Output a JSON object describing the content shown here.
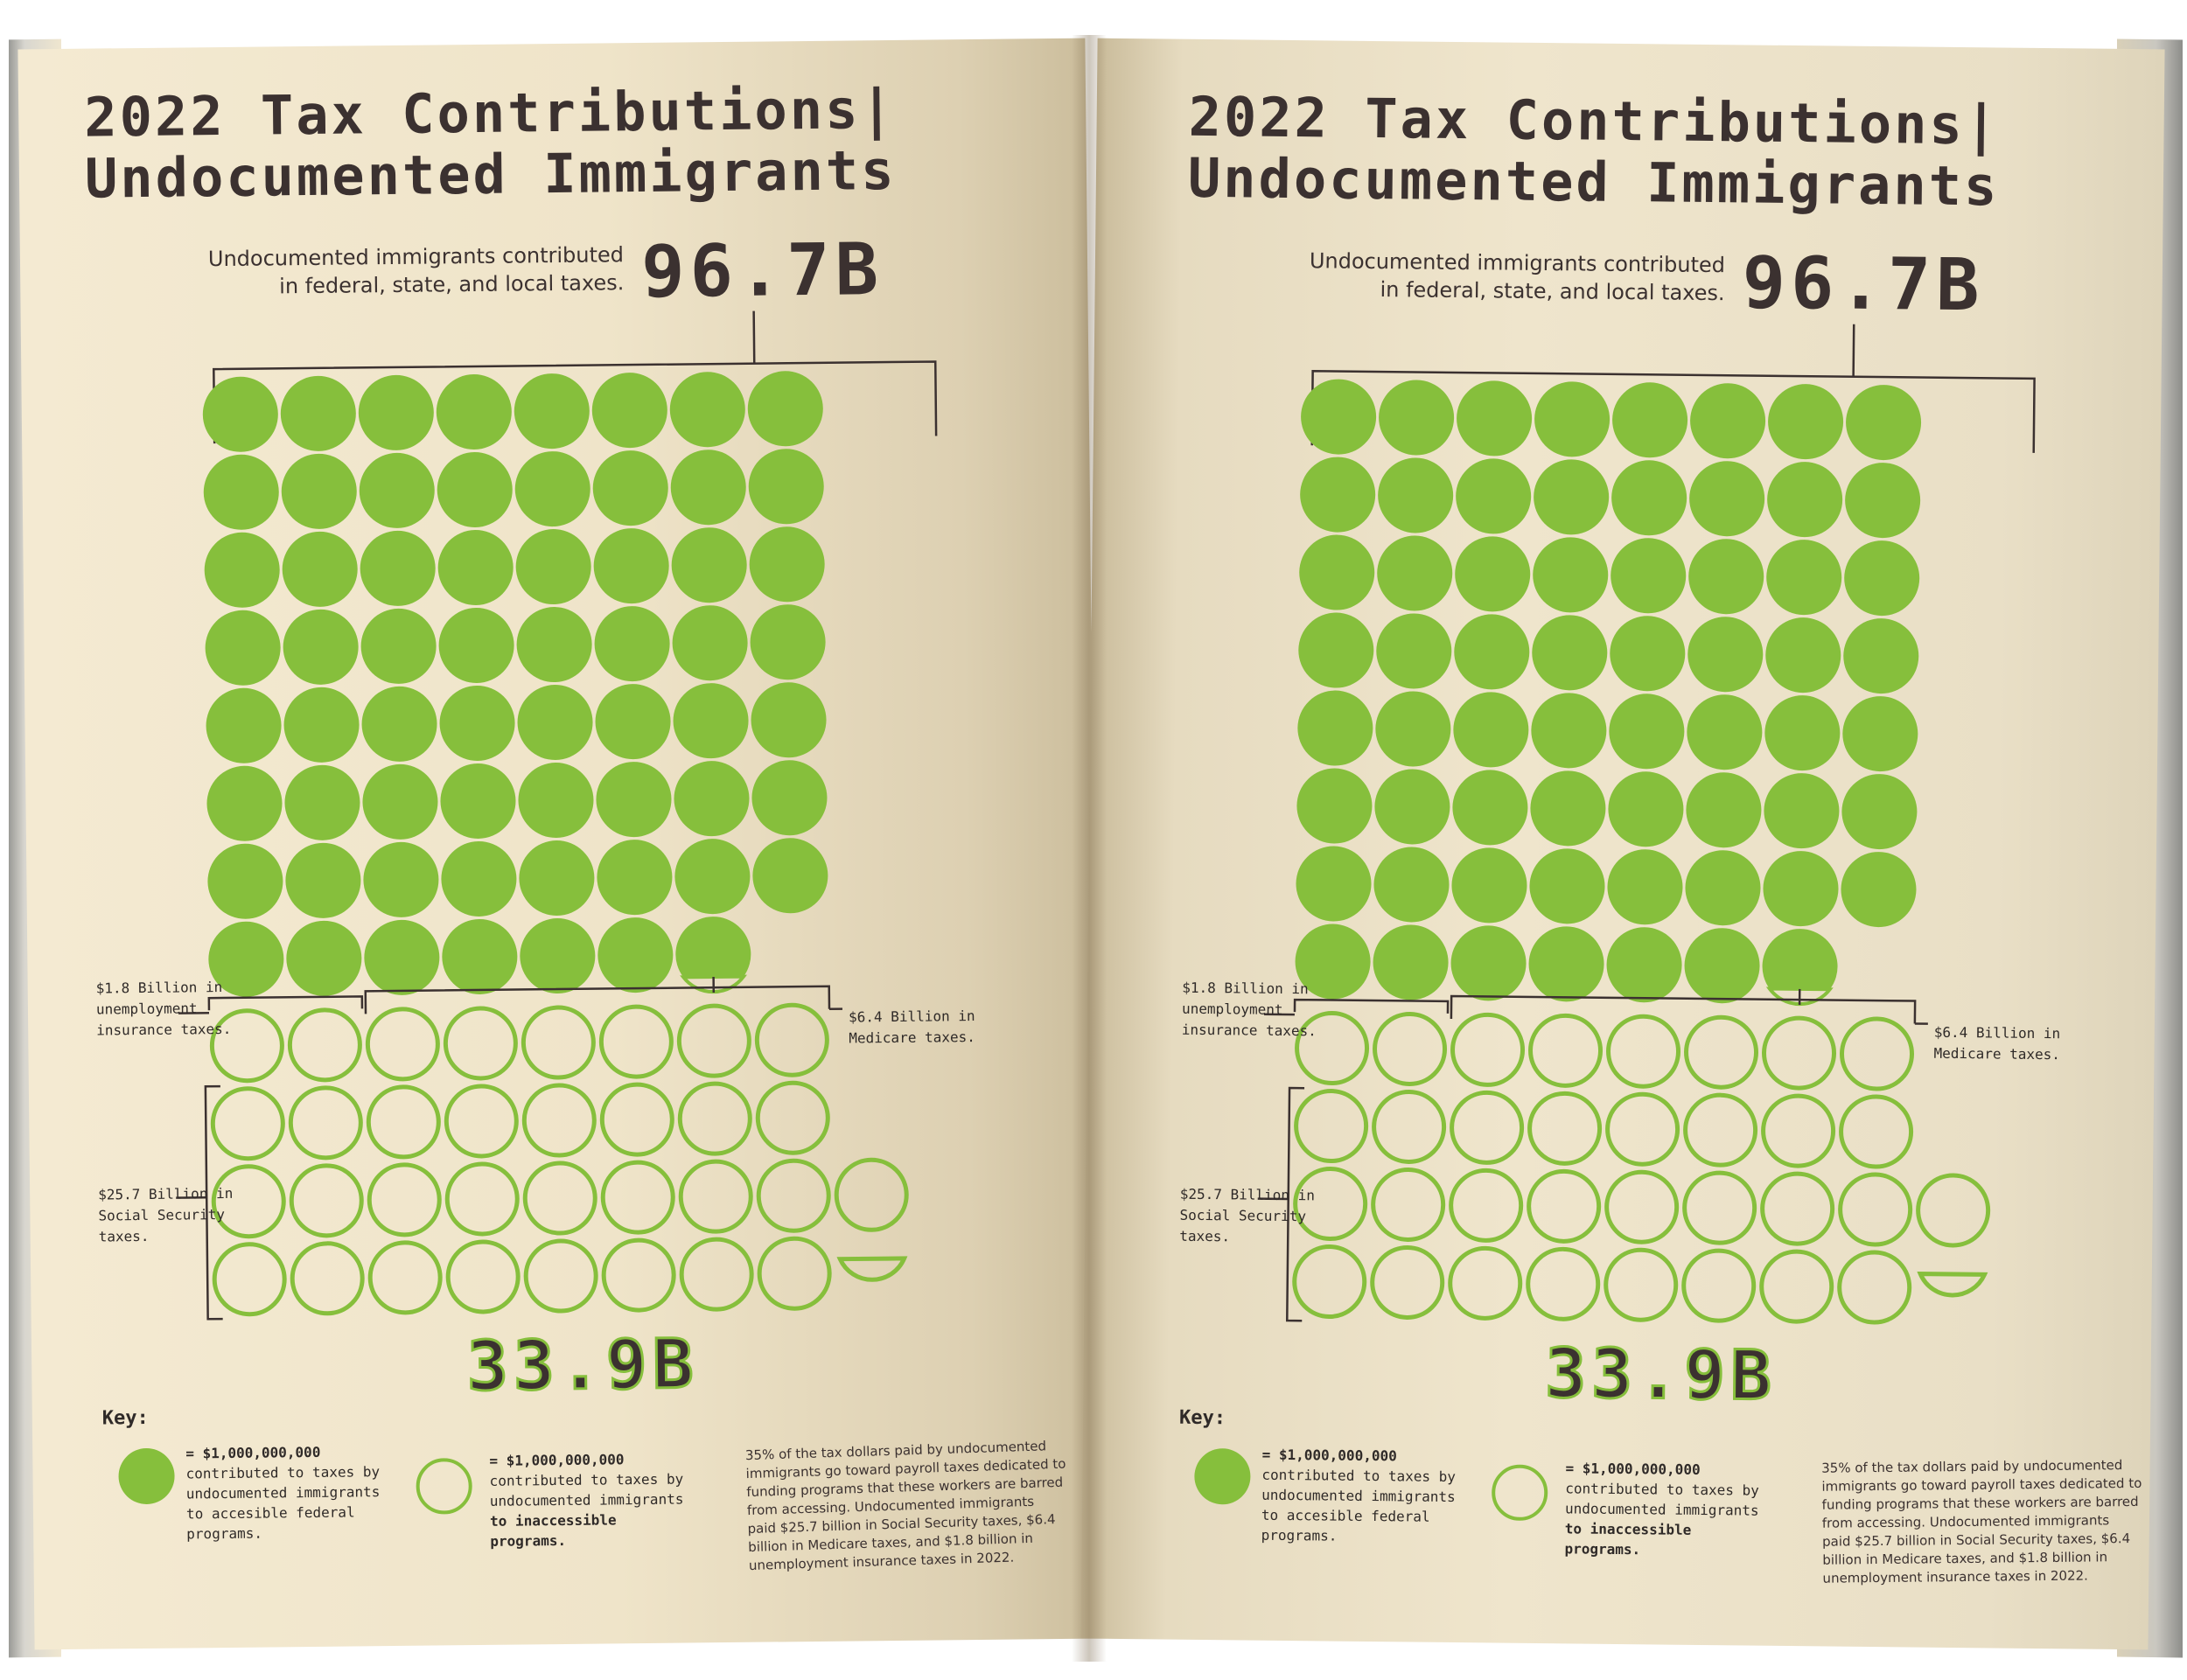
{
  "spread": {
    "title_line1": "2022 Tax Contributions|",
    "title_line2": "Undocumented Immigrants",
    "intro_line1": "Undocumented immigrants contributed",
    "intro_line2": "in federal, state, and local taxes.",
    "total_label": "96.7B",
    "inaccessible_label": "33.9B",
    "annotations": {
      "unemployment": [
        "$1.8 Billion in",
        "unemployment",
        "insurance taxes."
      ],
      "medicare": [
        "$6.4 Billion in",
        "Medicare taxes."
      ],
      "social_security": [
        "$25.7 Billion in",
        "Social Security",
        "taxes."
      ]
    },
    "key": {
      "heading": "Key:",
      "filled": [
        "= $1,000,000,000",
        "contributed to taxes by",
        "undocumented immigrants",
        "to accesible federal",
        "programs."
      ],
      "outline": [
        "= $1,000,000,000",
        "contributed to taxes by",
        "undocumented immigrants",
        "to inaccessible",
        "programs."
      ]
    },
    "note": [
      "35% of the tax dollars paid by undocumented",
      "immigrants go toward payroll taxes dedicated to",
      "funding programs that these workers are barred",
      "from accessing. Undocumented immigrants",
      "paid $25.7 billion in Social Security taxes, $6.4",
      "billion in Medicare taxes, and $1.8 billion in",
      "unemployment insurance taxes in 2022."
    ]
  },
  "colors": {
    "accent_green": "#86bf3c",
    "text_dark": "#3b3130"
  },
  "chart_data": {
    "type": "unit-dot-matrix",
    "unit": "$1,000,000,000",
    "series": [
      {
        "name": "contributed to taxes by undocumented immigrants to accesible federal programs",
        "value": 62.8,
        "style": "filled"
      },
      {
        "name": "contributed to taxes by undocumented immigrants to inaccessible programs",
        "value": 33.9,
        "style": "outline"
      }
    ],
    "total": 96.7,
    "breakdown_inaccessible": [
      {
        "name": "Social Security taxes",
        "value": 25.7
      },
      {
        "name": "Medicare taxes",
        "value": 6.4
      },
      {
        "name": "unemployment insurance taxes",
        "value": 1.8
      }
    ],
    "columns": 8
  }
}
